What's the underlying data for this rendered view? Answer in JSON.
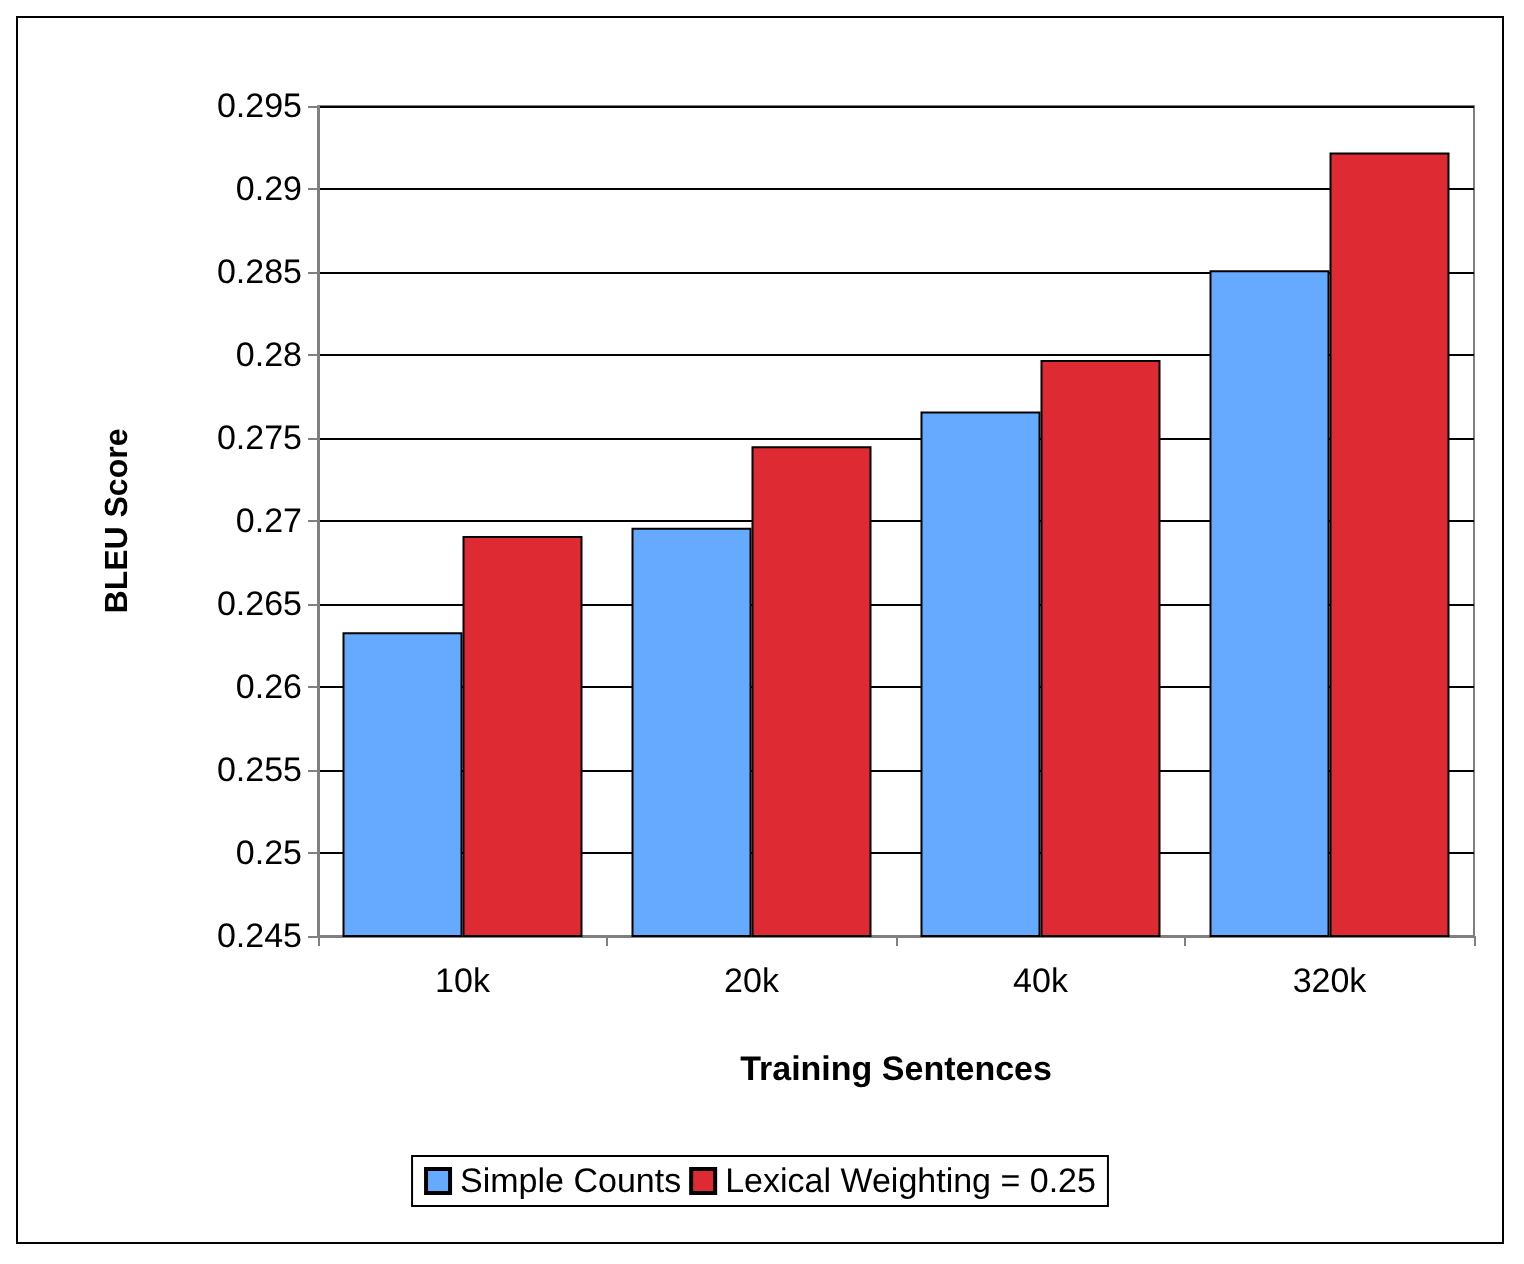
{
  "chart_data": {
    "type": "bar",
    "xlabel": "Training Sentences",
    "ylabel": "BLEU Score",
    "categories": [
      "10k",
      "20k",
      "40k",
      "320k"
    ],
    "series": [
      {
        "name": "Simple Counts",
        "color": "#66aaff",
        "values": [
          0.2633,
          0.2696,
          0.2766,
          0.2851
        ]
      },
      {
        "name": "Lexical Weighting = 0.25",
        "color": "#dd2a33",
        "values": [
          0.2691,
          0.2745,
          0.2797,
          0.2922
        ]
      }
    ],
    "ylim": [
      0.245,
      0.295
    ],
    "yticks": [
      0.245,
      0.25,
      0.255,
      0.26,
      0.265,
      0.27,
      0.275,
      0.28,
      0.285,
      0.29,
      0.295
    ],
    "grid": "y",
    "legend": "bottom"
  }
}
